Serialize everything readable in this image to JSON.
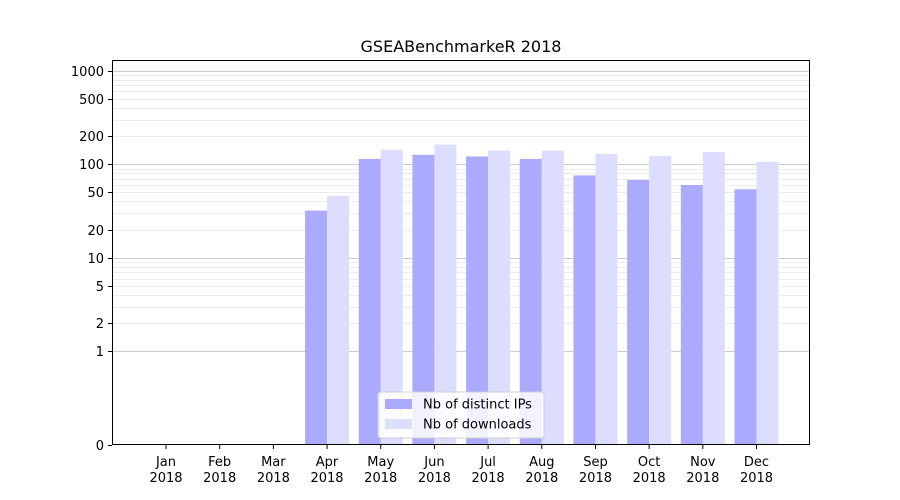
{
  "chart_data": {
    "type": "bar",
    "title": "GSEABenchmarkeR 2018",
    "xlabel": "",
    "ylabel": "",
    "yscale": "symlog",
    "ylim": [
      0,
      1300
    ],
    "grid": true,
    "legend_position": "bottom-center",
    "categories": [
      "Jan\n2018",
      "Feb\n2018",
      "Mar\n2018",
      "Apr\n2018",
      "May\n2018",
      "Jun\n2018",
      "Jul\n2018",
      "Aug\n2018",
      "Sep\n2018",
      "Oct\n2018",
      "Nov\n2018",
      "Dec\n2018"
    ],
    "yticks": [
      {
        "value": 0,
        "label": "0"
      },
      {
        "value": 1,
        "label": "1"
      },
      {
        "value": 2,
        "label": "2"
      },
      {
        "value": 5,
        "label": "5"
      },
      {
        "value": 10,
        "label": "10"
      },
      {
        "value": 20,
        "label": "20"
      },
      {
        "value": 50,
        "label": "50"
      },
      {
        "value": 100,
        "label": "100"
      },
      {
        "value": 200,
        "label": "200"
      },
      {
        "value": 500,
        "label": "500"
      },
      {
        "value": 1000,
        "label": "1000"
      }
    ],
    "series": [
      {
        "name": "Nb of distinct IPs",
        "color": "#aaaaff",
        "values": [
          0,
          0,
          0,
          32,
          114,
          126,
          121,
          114,
          76,
          68,
          60,
          54
        ]
      },
      {
        "name": "Nb of downloads",
        "color": "#ddddff",
        "values": [
          0,
          0,
          0,
          46,
          143,
          162,
          140,
          140,
          129,
          122,
          135,
          106
        ]
      }
    ]
  }
}
